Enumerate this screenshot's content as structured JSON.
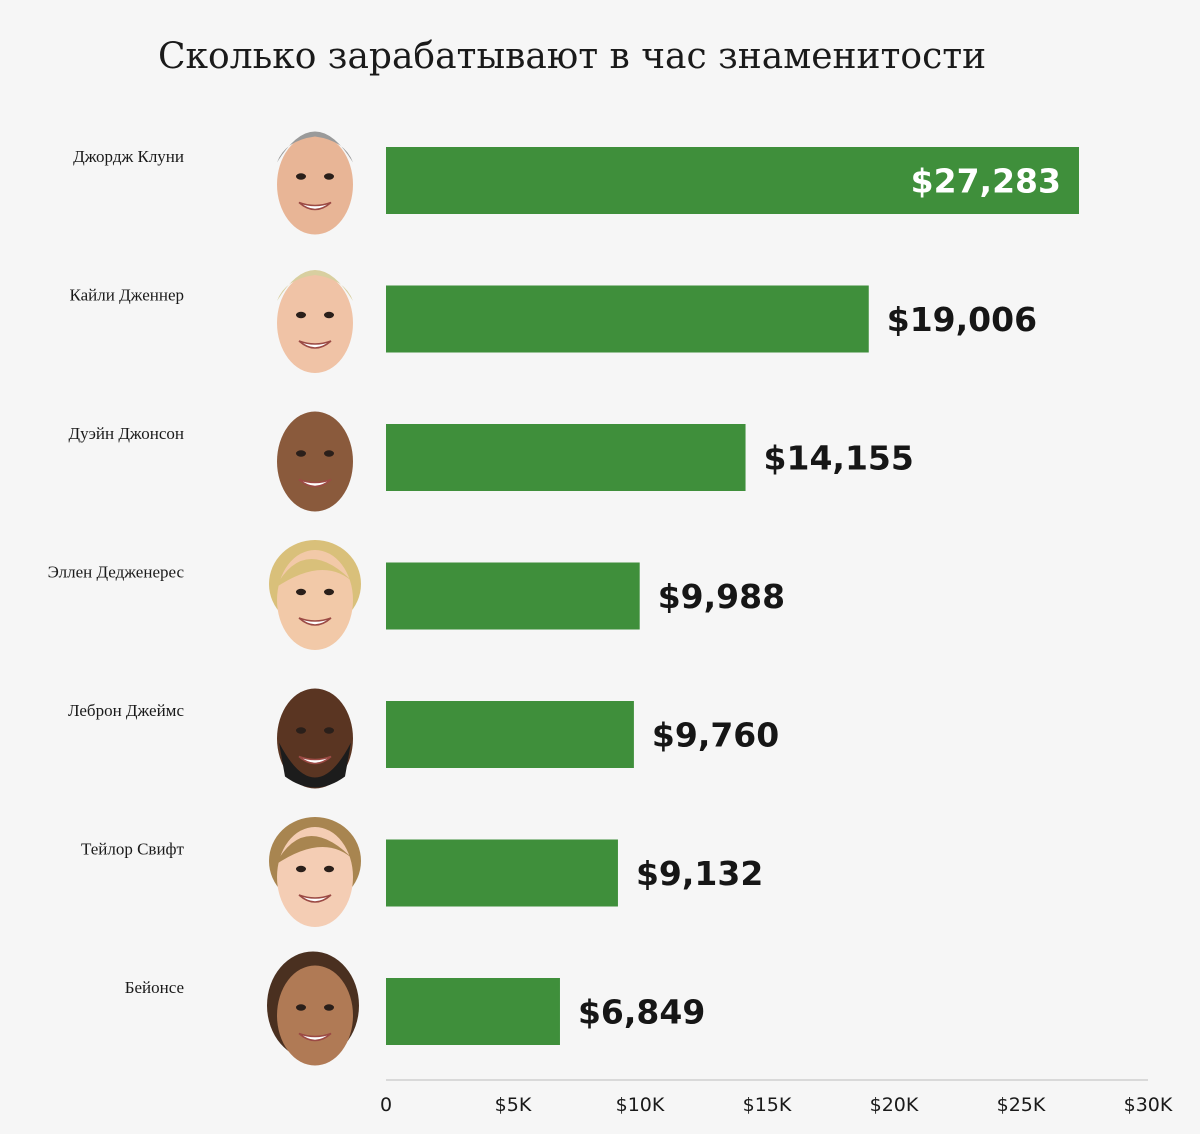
{
  "colors": {
    "background": "#f6f6f6",
    "bar": "#3f8f3b",
    "text": "#161616",
    "inside_label": "#ffffff",
    "axis": "#cfcfcf"
  },
  "chart_data": {
    "type": "bar",
    "orientation": "horizontal",
    "title": "Сколько зарабатывают в час знаменитости",
    "categories": [
      "Джордж Клуни",
      "Кайли Дженнер",
      "Дуэйн Джонсон",
      "Эллен Дедженерес",
      "Леброн Джеймс",
      "Тейлор Свифт",
      "Бейонсе"
    ],
    "values": [
      27283,
      19006,
      14155,
      9988,
      9760,
      9132,
      6849
    ],
    "value_labels": [
      "$27,283",
      "$19,006",
      "$14,155",
      "$9,988",
      "$9,760",
      "$9,132",
      "$6,849"
    ],
    "icons": [
      "george-clooney-face-icon",
      "kylie-jenner-face-icon",
      "dwayne-johnson-face-icon",
      "ellen-degeneres-face-icon",
      "lebron-james-face-icon",
      "taylor-swift-face-icon",
      "beyonce-face-icon"
    ],
    "xlim": [
      0,
      30000
    ],
    "x_ticks": [
      0,
      5000,
      10000,
      15000,
      20000,
      25000,
      30000
    ],
    "x_tick_labels": [
      "0",
      "$5K",
      "$10K",
      "$15K",
      "$20K",
      "$25K",
      "$30K"
    ],
    "grid": false,
    "legend": "none"
  }
}
